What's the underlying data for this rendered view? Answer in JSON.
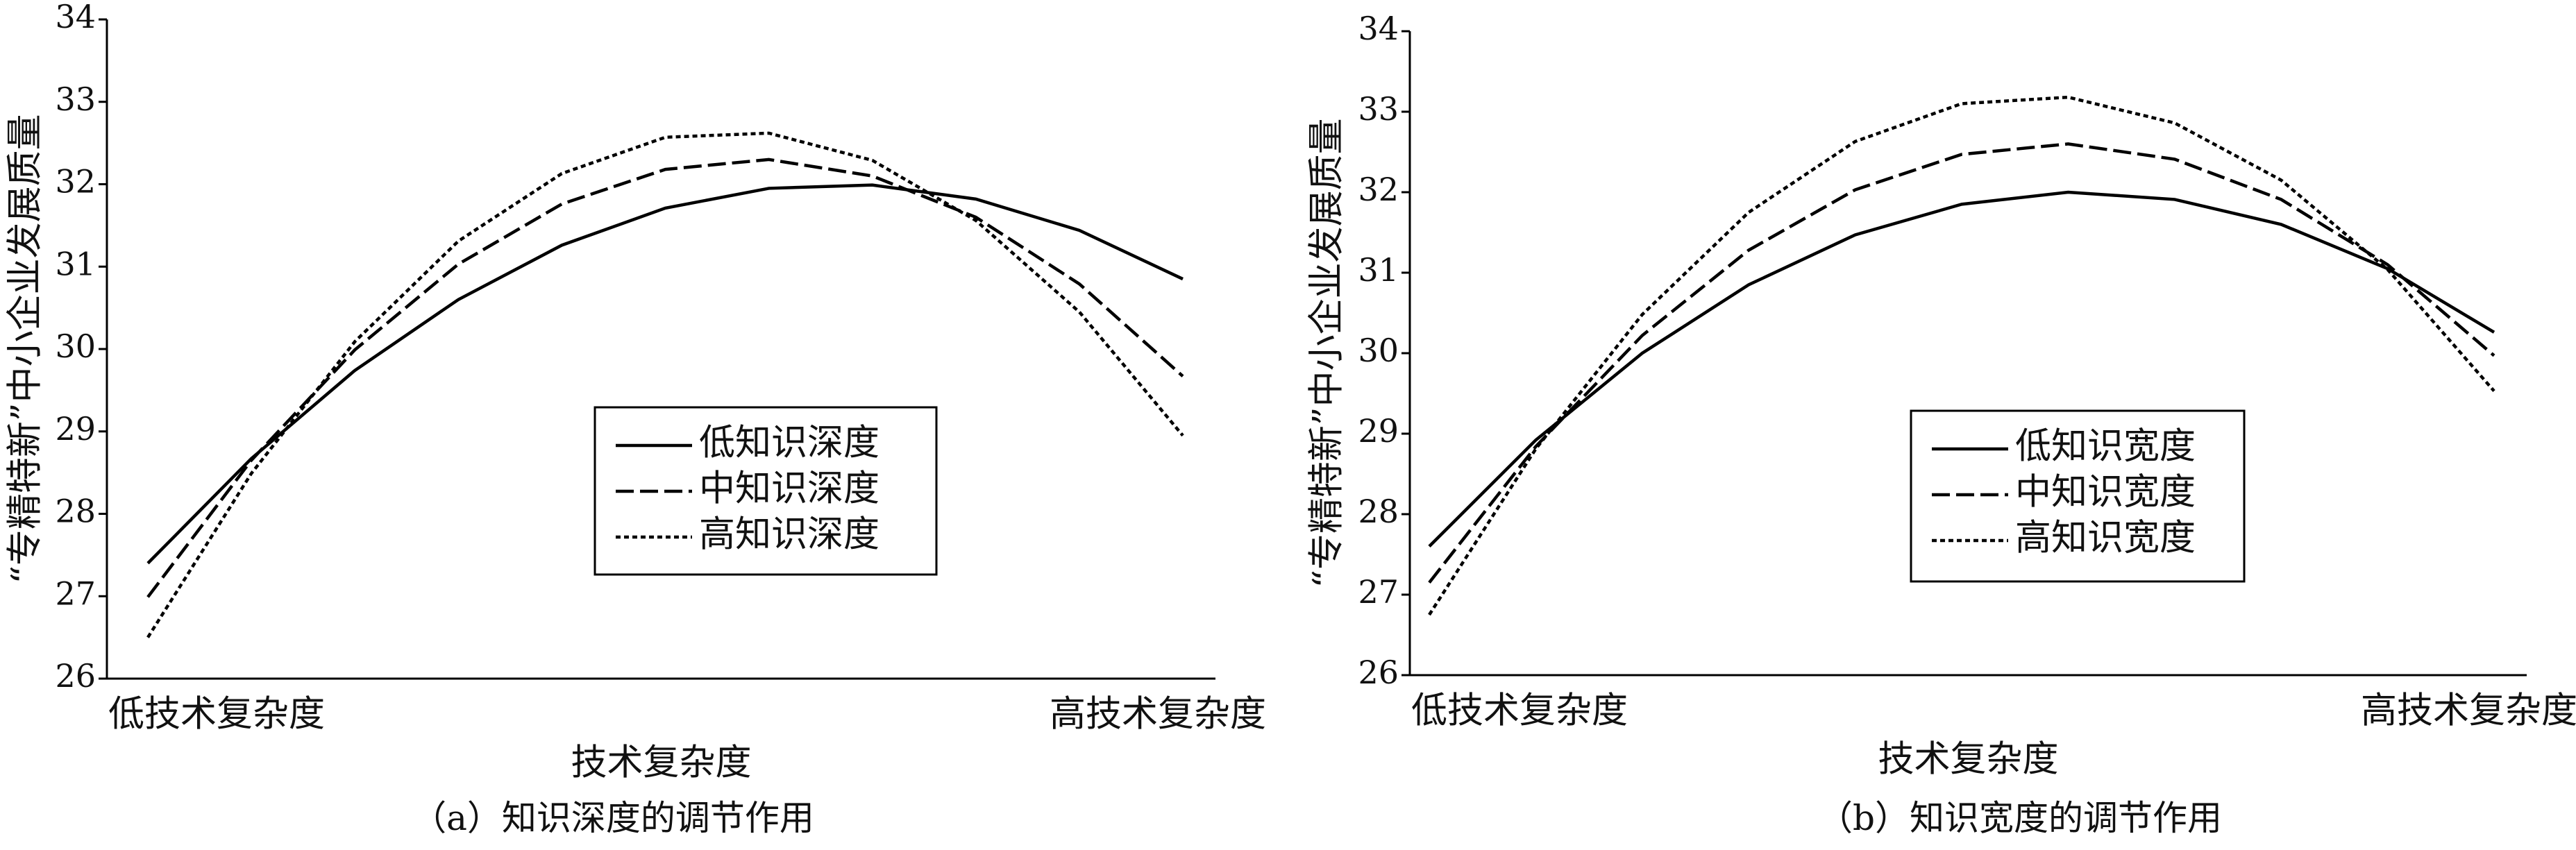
{
  "chart_data": [
    {
      "type": "line",
      "title": "（a）知识深度的调节作用",
      "x_label": "技术复杂度",
      "y_label": "“专精特新”中小企业发展质量",
      "categories": [
        "低技术复杂度",
        null,
        null,
        null,
        null,
        null,
        null,
        null,
        null,
        null,
        "高技术复杂度"
      ],
      "series": [
        {
          "name": "低知识深度",
          "color": "#000000",
          "line_style": "solid",
          "values": [
            27.4,
            28.67,
            29.74,
            30.6,
            31.26,
            31.71,
            31.95,
            31.99,
            31.82,
            31.44,
            30.85
          ]
        },
        {
          "name": "中知识深度",
          "color": "#000000",
          "line_style": "dashed",
          "values": [
            26.99,
            28.65,
            29.99,
            31.03,
            31.76,
            32.18,
            32.3,
            32.1,
            31.6,
            30.79,
            29.67
          ]
        },
        {
          "name": "高知识深度",
          "color": "#000000",
          "line_style": "dotted",
          "values": [
            26.5,
            28.49,
            30.09,
            31.31,
            32.13,
            32.57,
            32.62,
            32.29,
            31.56,
            30.45,
            28.95
          ]
        }
      ],
      "ylim": [
        26,
        34
      ],
      "yticks": [
        26,
        27,
        28,
        29,
        30,
        31,
        32,
        33,
        34
      ],
      "legend": "center"
    },
    {
      "type": "line",
      "title": "（b）知识宽度的调节作用",
      "x_label": "技术复杂度",
      "y_label": "“专精特新”中小企业发展质量",
      "categories": [
        "低技术复杂度",
        null,
        null,
        null,
        null,
        null,
        null,
        null,
        null,
        null,
        "高技术复杂度"
      ],
      "series": [
        {
          "name": "低知识宽度",
          "color": "#000000",
          "line_style": "solid",
          "values": [
            27.6,
            28.92,
            30.0,
            30.85,
            31.47,
            31.85,
            32.0,
            31.91,
            31.6,
            31.05,
            30.26
          ]
        },
        {
          "name": "中知识宽度",
          "color": "#000000",
          "line_style": "dashed",
          "values": [
            27.15,
            28.84,
            30.22,
            31.28,
            32.03,
            32.47,
            32.6,
            32.41,
            31.91,
            31.1,
            29.97
          ]
        },
        {
          "name": "高知识宽度",
          "color": "#000000",
          "line_style": "dotted",
          "values": [
            26.75,
            28.81,
            30.48,
            31.75,
            32.63,
            33.1,
            33.18,
            32.86,
            32.15,
            31.04,
            29.53
          ]
        }
      ],
      "ylim": [
        26,
        34
      ],
      "yticks": [
        26,
        27,
        28,
        29,
        30,
        31,
        32,
        33,
        34
      ],
      "legend": "center"
    }
  ]
}
